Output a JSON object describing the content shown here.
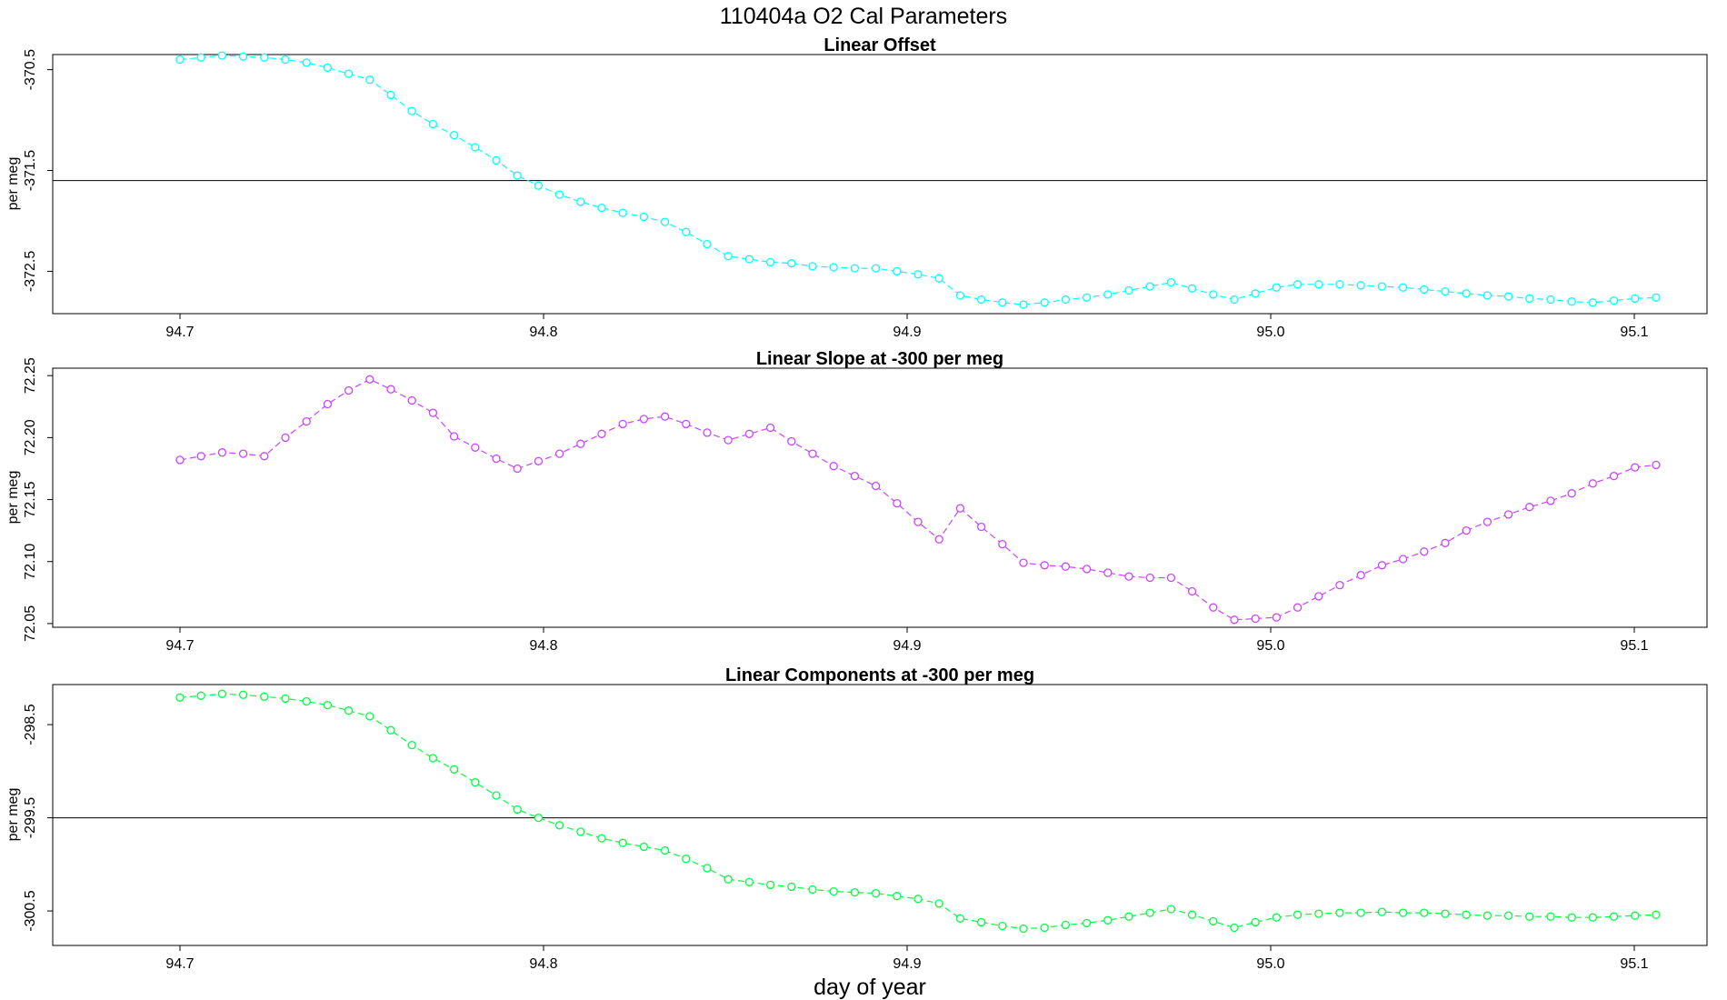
{
  "figure": {
    "title": "110404a   O2 Cal Parameters",
    "xlabel": "day of year"
  },
  "chart_data": [
    {
      "type": "line",
      "title": "Linear Offset",
      "ylabel": "per meg",
      "xlim": [
        94.665,
        95.12
      ],
      "ylim": [
        -372.92,
        -370.35
      ],
      "xticks": [
        94.7,
        94.8,
        94.9,
        95.0,
        95.1
      ],
      "xtick_labels": [
        "94.7",
        "94.8",
        "94.9",
        "95.0",
        "95.1"
      ],
      "yticks": [
        -370.5,
        -371.5,
        -372.5
      ],
      "ytick_labels": [
        "-370.5",
        "-371.5",
        "-372.5"
      ],
      "hline": -371.6,
      "series": [
        {
          "color": "#00ffff",
          "x": [
            94.7,
            94.7058,
            94.7116,
            94.7174,
            94.7232,
            94.729,
            94.7348,
            94.7406,
            94.7464,
            94.7522,
            94.758,
            94.7638,
            94.7696,
            94.7754,
            94.7812,
            94.787,
            94.7928,
            94.7986,
            94.8044,
            94.8102,
            94.816,
            94.8218,
            94.8276,
            94.8334,
            94.8392,
            94.845,
            94.8508,
            94.8566,
            94.8624,
            94.8682,
            94.874,
            94.8798,
            94.8856,
            94.8914,
            94.8972,
            94.903,
            94.9088,
            94.9146,
            94.9204,
            94.9262,
            94.932,
            94.9378,
            94.9436,
            94.9494,
            94.9552,
            94.961,
            94.9668,
            94.9726,
            94.9784,
            94.9842,
            94.99,
            94.9958,
            95.0016,
            95.0074,
            95.0132,
            95.019,
            95.0248,
            95.0306,
            95.0364,
            95.0422,
            95.048,
            95.0538,
            95.0596,
            95.0654,
            95.0712,
            95.077,
            95.0828,
            95.0886,
            95.0944,
            95.1002,
            95.106
          ],
          "y": [
            -370.4,
            -370.38,
            -370.36,
            -370.37,
            -370.38,
            -370.4,
            -370.43,
            -370.48,
            -370.54,
            -370.6,
            -370.75,
            -370.91,
            -371.04,
            -371.15,
            -371.27,
            -371.4,
            -371.55,
            -371.65,
            -371.74,
            -371.81,
            -371.87,
            -371.92,
            -371.96,
            -372.01,
            -372.11,
            -372.23,
            -372.35,
            -372.38,
            -372.41,
            -372.42,
            -372.45,
            -372.46,
            -372.47,
            -372.47,
            -372.5,
            -372.53,
            -372.57,
            -372.74,
            -372.78,
            -372.81,
            -372.83,
            -372.81,
            -372.78,
            -372.76,
            -372.73,
            -372.69,
            -372.65,
            -372.61,
            -372.67,
            -372.73,
            -372.78,
            -372.72,
            -372.66,
            -372.63,
            -372.63,
            -372.63,
            -372.64,
            -372.65,
            -372.66,
            -372.68,
            -372.7,
            -372.72,
            -372.74,
            -372.75,
            -372.77,
            -372.78,
            -372.8,
            -372.81,
            -372.79,
            -372.77,
            -372.76
          ]
        }
      ]
    },
    {
      "type": "line",
      "title": "Linear Slope at -300 per meg",
      "ylabel": "per meg",
      "xlim": [
        94.665,
        95.12
      ],
      "ylim": [
        72.047,
        72.256
      ],
      "xticks": [
        94.7,
        94.8,
        94.9,
        95.0,
        95.1
      ],
      "xtick_labels": [
        "94.7",
        "94.8",
        "94.9",
        "95.0",
        "95.1"
      ],
      "yticks": [
        72.05,
        72.1,
        72.15,
        72.2,
        72.25
      ],
      "ytick_labels": [
        "72.05",
        "72.10",
        "72.15",
        "72.20",
        "72.25"
      ],
      "series": [
        {
          "color": "#cc44ff",
          "x": [
            94.7,
            94.7058,
            94.7116,
            94.7174,
            94.7232,
            94.729,
            94.7348,
            94.7406,
            94.7464,
            94.7522,
            94.758,
            94.7638,
            94.7696,
            94.7754,
            94.7812,
            94.787,
            94.7928,
            94.7986,
            94.8044,
            94.8102,
            94.816,
            94.8218,
            94.8276,
            94.8334,
            94.8392,
            94.845,
            94.8508,
            94.8566,
            94.8624,
            94.8682,
            94.874,
            94.8798,
            94.8856,
            94.8914,
            94.8972,
            94.903,
            94.9088,
            94.9146,
            94.9204,
            94.9262,
            94.932,
            94.9378,
            94.9436,
            94.9494,
            94.9552,
            94.961,
            94.9668,
            94.9726,
            94.9784,
            94.9842,
            94.99,
            94.9958,
            95.0016,
            95.0074,
            95.0132,
            95.019,
            95.0248,
            95.0306,
            95.0364,
            95.0422,
            95.048,
            95.0538,
            95.0596,
            95.0654,
            95.0712,
            95.077,
            95.0828,
            95.0886,
            95.0944,
            95.1002,
            95.106
          ],
          "y": [
            72.182,
            72.185,
            72.188,
            72.187,
            72.185,
            72.2,
            72.213,
            72.227,
            72.238,
            72.247,
            72.239,
            72.23,
            72.22,
            72.201,
            72.192,
            72.183,
            72.175,
            72.181,
            72.187,
            72.195,
            72.203,
            72.211,
            72.215,
            72.217,
            72.211,
            72.204,
            72.198,
            72.203,
            72.208,
            72.197,
            72.187,
            72.177,
            72.169,
            72.161,
            72.147,
            72.132,
            72.118,
            72.143,
            72.128,
            72.114,
            72.099,
            72.097,
            72.096,
            72.094,
            72.091,
            72.088,
            72.087,
            72.087,
            72.076,
            72.063,
            72.053,
            72.054,
            72.055,
            72.063,
            72.072,
            72.081,
            72.089,
            72.097,
            72.102,
            72.108,
            72.115,
            72.125,
            72.132,
            72.138,
            72.144,
            72.149,
            72.155,
            72.163,
            72.169,
            72.176,
            72.178
          ]
        }
      ]
    },
    {
      "type": "line",
      "title": "Linear Components at -300 per meg",
      "ylabel": "per meg",
      "xlim": [
        94.665,
        95.12
      ],
      "ylim": [
        -300.87,
        -298.07
      ],
      "xticks": [
        94.7,
        94.8,
        94.9,
        95.0,
        95.1
      ],
      "xtick_labels": [
        "94.7",
        "94.8",
        "94.9",
        "95.0",
        "95.1"
      ],
      "yticks": [
        -298.5,
        -299.5,
        -300.5
      ],
      "ytick_labels": [
        "-298.5",
        "-299.5",
        "-300.5"
      ],
      "hline": -299.5,
      "series": [
        {
          "color": "#00ff44",
          "x": [
            94.7,
            94.7058,
            94.7116,
            94.7174,
            94.7232,
            94.729,
            94.7348,
            94.7406,
            94.7464,
            94.7522,
            94.758,
            94.7638,
            94.7696,
            94.7754,
            94.7812,
            94.787,
            94.7928,
            94.7986,
            94.8044,
            94.8102,
            94.816,
            94.8218,
            94.8276,
            94.8334,
            94.8392,
            94.845,
            94.8508,
            94.8566,
            94.8624,
            94.8682,
            94.874,
            94.8798,
            94.8856,
            94.8914,
            94.8972,
            94.903,
            94.9088,
            94.9146,
            94.9204,
            94.9262,
            94.932,
            94.9378,
            94.9436,
            94.9494,
            94.9552,
            94.961,
            94.9668,
            94.9726,
            94.9784,
            94.9842,
            94.99,
            94.9958,
            95.0016,
            95.0074,
            95.0132,
            95.019,
            95.0248,
            95.0306,
            95.0364,
            95.0422,
            95.048,
            95.0538,
            95.0596,
            95.0654,
            95.0712,
            95.077,
            95.0828,
            95.0886,
            95.0944,
            95.1002,
            95.106
          ],
          "y": [
            -298.21,
            -298.19,
            -298.17,
            -298.18,
            -298.2,
            -298.22,
            -298.25,
            -298.29,
            -298.35,
            -298.41,
            -298.56,
            -298.72,
            -298.86,
            -298.98,
            -299.12,
            -299.26,
            -299.41,
            -299.5,
            -299.58,
            -299.65,
            -299.72,
            -299.77,
            -299.81,
            -299.85,
            -299.94,
            -300.04,
            -300.16,
            -300.19,
            -300.22,
            -300.24,
            -300.27,
            -300.29,
            -300.3,
            -300.31,
            -300.34,
            -300.37,
            -300.42,
            -300.58,
            -300.62,
            -300.66,
            -300.69,
            -300.68,
            -300.65,
            -300.63,
            -300.6,
            -300.56,
            -300.52,
            -300.48,
            -300.54,
            -300.61,
            -300.68,
            -300.62,
            -300.57,
            -300.54,
            -300.53,
            -300.52,
            -300.52,
            -300.51,
            -300.52,
            -300.52,
            -300.53,
            -300.54,
            -300.55,
            -300.55,
            -300.56,
            -300.56,
            -300.57,
            -300.57,
            -300.56,
            -300.55,
            -300.54
          ]
        }
      ]
    }
  ]
}
